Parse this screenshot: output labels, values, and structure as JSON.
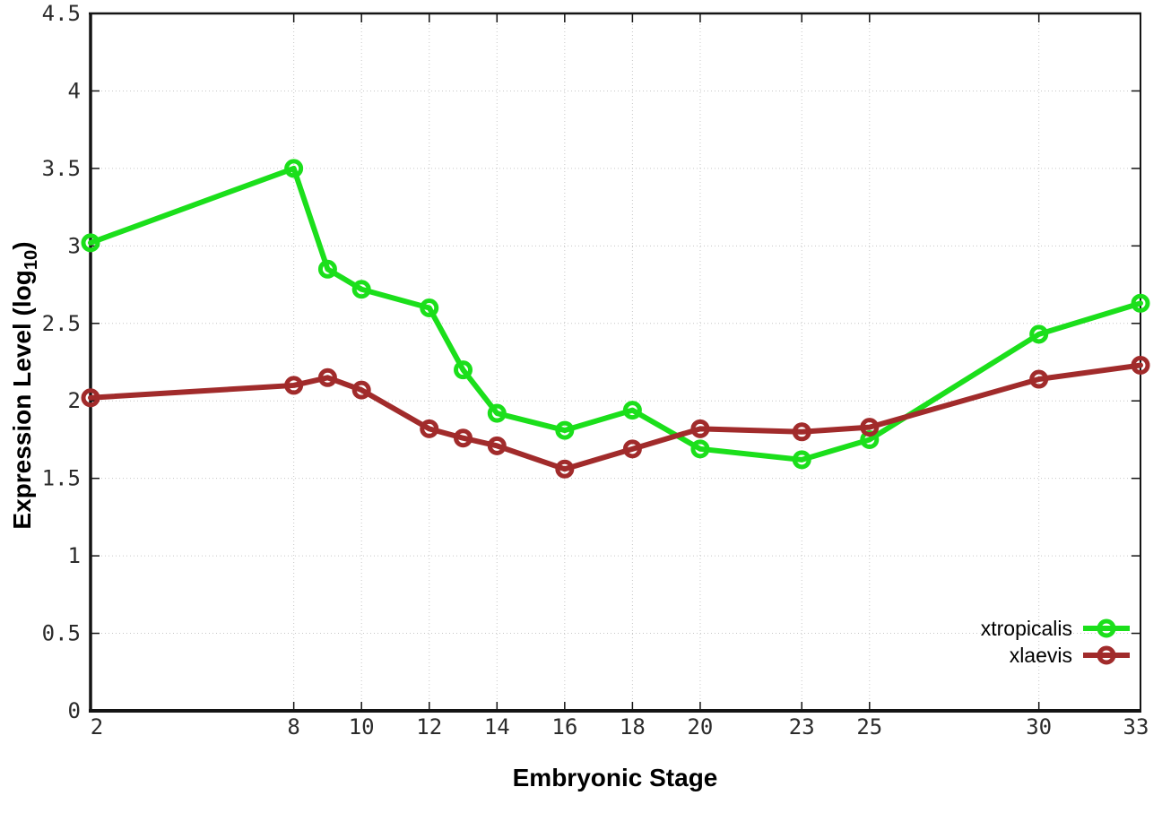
{
  "chart_data": {
    "type": "line",
    "title": "",
    "xlabel": "Embryonic Stage",
    "ylabel": "Expression Level (log10)",
    "ylabel_parts": {
      "text": "Expression Level (log",
      "subscript": "10",
      "suffix": ")"
    },
    "xlim": [
      2,
      33
    ],
    "ylim": [
      0,
      4.5
    ],
    "xticks": [
      2,
      8,
      10,
      12,
      14,
      16,
      18,
      20,
      23,
      25,
      30,
      33
    ],
    "yticks": [
      0,
      0.5,
      1,
      1.5,
      2,
      2.5,
      3,
      3.5,
      4,
      4.5
    ],
    "grid": true,
    "grid_style": "dotted",
    "marker": "open-circle",
    "legend_position": "bottom-right",
    "x": [
      2,
      8,
      9,
      10,
      12,
      13,
      14,
      16,
      18,
      20,
      23,
      25,
      30,
      33
    ],
    "series": [
      {
        "name": "xtropicalis",
        "color": "#1bdf1b",
        "values": [
          3.02,
          3.5,
          2.85,
          2.72,
          2.6,
          2.2,
          1.92,
          1.81,
          1.94,
          1.69,
          1.62,
          1.75,
          2.43,
          2.63
        ]
      },
      {
        "name": "xlaevis",
        "color": "#a12b2b",
        "values": [
          2.02,
          2.1,
          2.15,
          2.07,
          1.82,
          1.76,
          1.71,
          1.56,
          1.69,
          1.82,
          1.8,
          1.83,
          2.14,
          2.23
        ]
      }
    ],
    "style": {
      "axis_color": "#141414",
      "grid_color": "#c6c6c6",
      "tick_label_color": "#2b2b2b"
    }
  }
}
